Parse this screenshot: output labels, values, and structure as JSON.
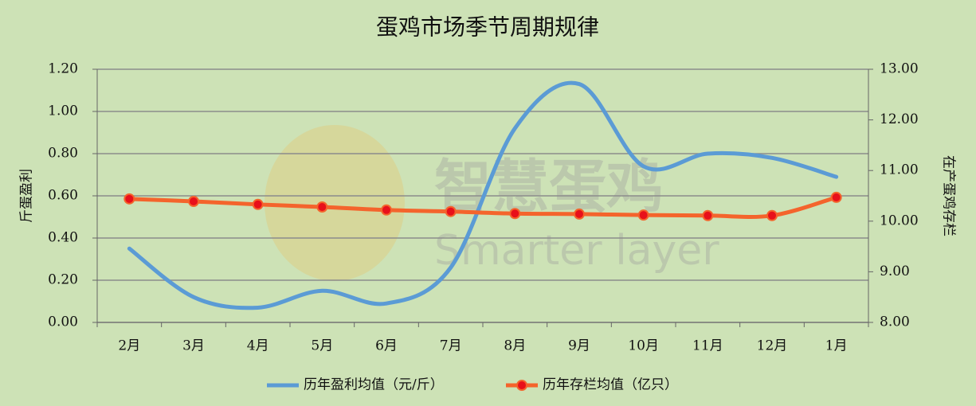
{
  "chart_data": {
    "type": "line",
    "title": "蛋鸡市场季节周期规律",
    "categories": [
      "2月",
      "3月",
      "4月",
      "5月",
      "6月",
      "7月",
      "8月",
      "9月",
      "10月",
      "11月",
      "12月",
      "1月"
    ],
    "y_label": "斤蛋盈利",
    "y2_label": "在产蛋鸡存栏",
    "watermark": [
      "智慧蛋鸡",
      "Smarter layer"
    ],
    "series": [
      {
        "name": "历年盈利均值（元/斤）",
        "color": "#5b9bd5",
        "values": [
          0.35,
          0.12,
          0.07,
          0.15,
          0.09,
          0.26,
          0.92,
          1.13,
          0.74,
          0.8,
          0.78,
          0.69
        ]
      },
      {
        "name": "历年存栏均值（亿只）",
        "color": "#f4642c",
        "marker_color": "#e8101a",
        "axis": "y2",
        "values": [
          10.44,
          10.39,
          10.33,
          10.28,
          10.22,
          10.19,
          10.15,
          10.14,
          10.12,
          10.11,
          10.11,
          10.47
        ]
      }
    ],
    "ylim": [
      0,
      1.2
    ],
    "yticks": [
      {
        "value": 0,
        "label": "0.00"
      },
      {
        "value": 0.2,
        "label": "0.20"
      },
      {
        "value": 0.4,
        "label": "0.40"
      },
      {
        "value": 0.6,
        "label": "0.60"
      },
      {
        "value": 0.8,
        "label": "0.80"
      },
      {
        "value": 1.0,
        "label": "1.00"
      },
      {
        "value": 1.2,
        "label": "1.20"
      }
    ],
    "y2lim": [
      8,
      13
    ],
    "y2ticks": [
      {
        "value": 8,
        "label": "8.00"
      },
      {
        "value": 9,
        "label": "9.00"
      },
      {
        "value": 10,
        "label": "10.00"
      },
      {
        "value": 11,
        "label": "11.00"
      },
      {
        "value": 12,
        "label": "12.00"
      },
      {
        "value": 13,
        "label": "13.00"
      }
    ],
    "grid": true,
    "legend": "bottom"
  }
}
